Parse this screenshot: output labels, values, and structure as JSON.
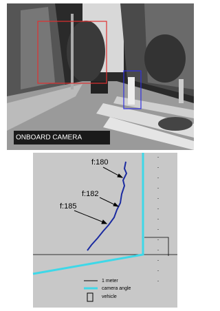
{
  "camera": {
    "label": "ONBOARD CAMERA"
  },
  "diagram": {
    "frame_labels": [
      "f:180",
      "f:182",
      "f:185"
    ],
    "legend": [
      "1 meter",
      "camera angle",
      "vehicle"
    ]
  }
}
